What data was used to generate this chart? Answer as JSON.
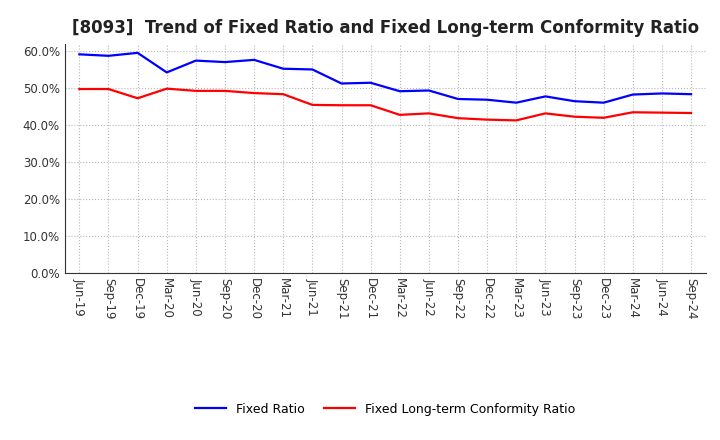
{
  "title": "[8093]  Trend of Fixed Ratio and Fixed Long-term Conformity Ratio",
  "x_labels": [
    "Jun-19",
    "Sep-19",
    "Dec-19",
    "Mar-20",
    "Jun-20",
    "Sep-20",
    "Dec-20",
    "Mar-21",
    "Jun-21",
    "Sep-21",
    "Dec-21",
    "Mar-22",
    "Jun-22",
    "Sep-22",
    "Dec-22",
    "Mar-23",
    "Jun-23",
    "Sep-23",
    "Dec-23",
    "Mar-24",
    "Jun-24",
    "Sep-24"
  ],
  "fixed_ratio": [
    59.2,
    58.8,
    59.6,
    54.3,
    57.5,
    57.1,
    57.7,
    55.3,
    55.1,
    51.3,
    51.5,
    49.2,
    49.4,
    47.1,
    46.9,
    46.1,
    47.8,
    46.5,
    46.1,
    48.3,
    48.6,
    48.4
  ],
  "fixed_lt_ratio": [
    49.8,
    49.8,
    47.3,
    49.9,
    49.3,
    49.3,
    48.7,
    48.4,
    45.5,
    45.4,
    45.4,
    42.8,
    43.2,
    41.9,
    41.5,
    41.3,
    43.2,
    42.3,
    42.0,
    43.5,
    43.4,
    43.3
  ],
  "fixed_ratio_color": "#0000FF",
  "fixed_lt_ratio_color": "#FF0000",
  "ylim": [
    0,
    62
  ],
  "yticks": [
    0,
    10,
    20,
    30,
    40,
    50,
    60
  ],
  "ytick_labels": [
    "0.0%",
    "10.0%",
    "20.0%",
    "30.0%",
    "40.0%",
    "50.0%",
    "60.0%"
  ],
  "legend_fixed": "Fixed Ratio",
  "legend_lt": "Fixed Long-term Conformity Ratio",
  "background_color": "#FFFFFF",
  "grid_color": "#999999",
  "title_fontsize": 12,
  "tick_fontsize": 8.5,
  "line_width": 1.6
}
